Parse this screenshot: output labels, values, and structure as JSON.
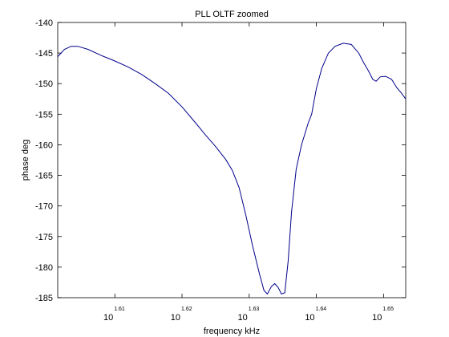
{
  "chart_data": {
    "type": "line",
    "title": "PLL OLTF zoomed",
    "xlabel": "frequency kHz",
    "ylabel": "phase deg",
    "x_scale": "log",
    "xlim_exponent": [
      1.6015,
      1.6533
    ],
    "ylim": [
      -185,
      -140
    ],
    "x_ticks": [
      {
        "base": "10",
        "exp": "1.61",
        "value_exp": 1.61
      },
      {
        "base": "10",
        "exp": "1.62",
        "value_exp": 1.62
      },
      {
        "base": "10",
        "exp": "1.63",
        "value_exp": 1.63
      },
      {
        "base": "10",
        "exp": "1.64",
        "value_exp": 1.64
      },
      {
        "base": "10",
        "exp": "1.65",
        "value_exp": 1.65
      }
    ],
    "y_ticks": [
      -140,
      -145,
      -150,
      -155,
      -160,
      -165,
      -170,
      -175,
      -180,
      -185
    ],
    "y_tick_labels": [
      "-140",
      "-145",
      "-150",
      "-155",
      "-160",
      "-165",
      "-170",
      "-175",
      "-180",
      "-185"
    ],
    "grid": false,
    "series": [
      {
        "color": "#00008b",
        "points": [
          [
            1.6015,
            -145.6
          ],
          [
            1.6025,
            -144.4
          ],
          [
            1.6035,
            -143.9
          ],
          [
            1.6045,
            -143.9
          ],
          [
            1.606,
            -144.4
          ],
          [
            1.608,
            -145.4
          ],
          [
            1.61,
            -146.3
          ],
          [
            1.612,
            -147.3
          ],
          [
            1.614,
            -148.5
          ],
          [
            1.616,
            -150.0
          ],
          [
            1.618,
            -151.6
          ],
          [
            1.62,
            -153.8
          ],
          [
            1.622,
            -156.4
          ],
          [
            1.6235,
            -158.4
          ],
          [
            1.625,
            -160.3
          ],
          [
            1.6265,
            -162.4
          ],
          [
            1.6275,
            -164.2
          ],
          [
            1.6285,
            -167.0
          ],
          [
            1.6295,
            -171.5
          ],
          [
            1.6305,
            -176.5
          ],
          [
            1.6315,
            -181.0
          ],
          [
            1.6322,
            -183.8
          ],
          [
            1.6327,
            -184.4
          ],
          [
            1.6333,
            -183.2
          ],
          [
            1.6338,
            -182.7
          ],
          [
            1.6343,
            -183.3
          ],
          [
            1.6348,
            -184.4
          ],
          [
            1.6353,
            -184.2
          ],
          [
            1.6358,
            -179.0
          ],
          [
            1.6363,
            -171.0
          ],
          [
            1.637,
            -164.0
          ],
          [
            1.6378,
            -160.0
          ],
          [
            1.6388,
            -156.4
          ],
          [
            1.6393,
            -155.0
          ],
          [
            1.64,
            -150.8
          ],
          [
            1.6408,
            -147.5
          ],
          [
            1.6418,
            -145.0
          ],
          [
            1.6428,
            -143.9
          ],
          [
            1.644,
            -143.4
          ],
          [
            1.6452,
            -143.6
          ],
          [
            1.6463,
            -145.0
          ],
          [
            1.647,
            -146.5
          ],
          [
            1.6478,
            -148.0
          ],
          [
            1.6484,
            -149.3
          ],
          [
            1.6489,
            -149.6
          ],
          [
            1.6495,
            -148.9
          ],
          [
            1.6503,
            -148.8
          ],
          [
            1.6512,
            -149.3
          ],
          [
            1.652,
            -150.7
          ],
          [
            1.6527,
            -151.6
          ],
          [
            1.6533,
            -152.5
          ]
        ]
      }
    ]
  }
}
